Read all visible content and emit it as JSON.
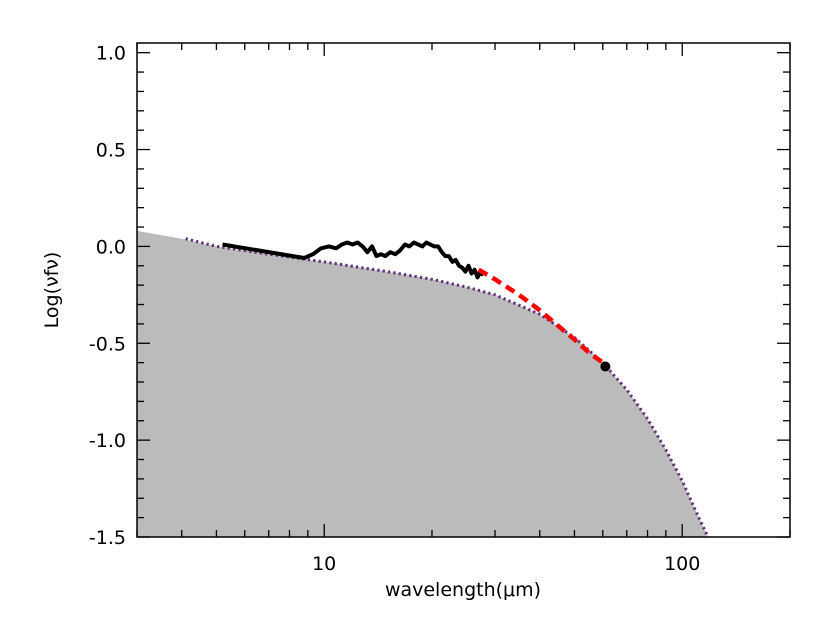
{
  "chart_data": {
    "type": "line",
    "title": "",
    "xlabel": "wavelength(μm)",
    "ylabel": "Log(νfν)",
    "xscale": "log",
    "xlim": [
      3,
      200
    ],
    "ylim": [
      -1.5,
      1.05
    ],
    "x_tick_labels": [
      {
        "value": 10,
        "label": "10"
      },
      {
        "value": 100,
        "label": "100"
      }
    ],
    "y_tick_labels": [
      {
        "value": 1.0,
        "label": "1.0"
      },
      {
        "value": 0.5,
        "label": "0.5"
      },
      {
        "value": 0.0,
        "label": "0.0"
      },
      {
        "value": -0.5,
        "label": "-0.5"
      },
      {
        "value": -1.0,
        "label": "-1.0"
      },
      {
        "value": -1.5,
        "label": "-1.5"
      }
    ],
    "grid": false,
    "legend": "none",
    "colors": {
      "fill": "#bbbbbb",
      "model_dotted": "#5c2d75",
      "observed": "#000000",
      "fit_dashed": "#ff0000",
      "point": "#000000"
    },
    "series": [
      {
        "style": "filled-area",
        "x": [
          3.0,
          4.0,
          5.0,
          7.0,
          10.0,
          15.0,
          20.0,
          25.0,
          30.0,
          40.0,
          50.0,
          60.0,
          70.0,
          80.0,
          90.0,
          100.0,
          110.0,
          120.0,
          130.0
        ],
        "y": [
          0.08,
          0.04,
          0.0,
          -0.04,
          -0.08,
          -0.13,
          -0.17,
          -0.21,
          -0.25,
          -0.35,
          -0.47,
          -0.6,
          -0.74,
          -0.89,
          -1.05,
          -1.21,
          -1.38,
          -1.53,
          -1.6
        ]
      },
      {
        "style": "dotted",
        "x": [
          4.1,
          5.0,
          7.0,
          10.0,
          15.0,
          20.0,
          25.0,
          30.0,
          40.0,
          50.0,
          60.0,
          70.0,
          80.0,
          90.0,
          100.0,
          110.0,
          118.0
        ],
        "y": [
          0.04,
          0.0,
          -0.04,
          -0.08,
          -0.13,
          -0.17,
          -0.21,
          -0.25,
          -0.35,
          -0.47,
          -0.6,
          -0.74,
          -0.89,
          -1.05,
          -1.21,
          -1.38,
          -1.5
        ]
      },
      {
        "style": "solid",
        "x": [
          5.2,
          8.8,
          9.3,
          9.8,
          10.3,
          10.8,
          11.2,
          11.6,
          12.0,
          12.4,
          12.8,
          13.2,
          13.6,
          14.0,
          14.4,
          14.8,
          15.3,
          15.8,
          16.3,
          16.8,
          17.3,
          17.8,
          18.3,
          18.8,
          19.3,
          19.8,
          20.3,
          20.8,
          21.3,
          21.8,
          22.3,
          22.8,
          23.3,
          23.8,
          24.3,
          24.8,
          25.3,
          25.8,
          26.3,
          26.8,
          27.3,
          27.8
        ],
        "y": [
          0.01,
          -0.06,
          -0.04,
          -0.01,
          0.0,
          -0.01,
          0.01,
          0.02,
          0.01,
          0.02,
          0.0,
          -0.03,
          0.0,
          -0.05,
          -0.04,
          -0.05,
          -0.03,
          -0.04,
          -0.02,
          0.01,
          0.0,
          0.02,
          0.01,
          0.0,
          0.02,
          0.01,
          0.0,
          0.0,
          -0.03,
          -0.05,
          -0.05,
          -0.08,
          -0.07,
          -0.1,
          -0.11,
          -0.13,
          -0.1,
          -0.14,
          -0.12,
          -0.16,
          -0.13,
          -0.15
        ]
      },
      {
        "style": "dashed",
        "x": [
          27.0,
          30.0,
          35.0,
          40.0,
          45.0,
          50.0,
          55.0,
          60.0
        ],
        "y": [
          -0.12,
          -0.17,
          -0.25,
          -0.33,
          -0.41,
          -0.48,
          -0.55,
          -0.6
        ]
      },
      {
        "style": "marker",
        "x": [
          61.0
        ],
        "y": [
          -0.62
        ]
      }
    ]
  }
}
